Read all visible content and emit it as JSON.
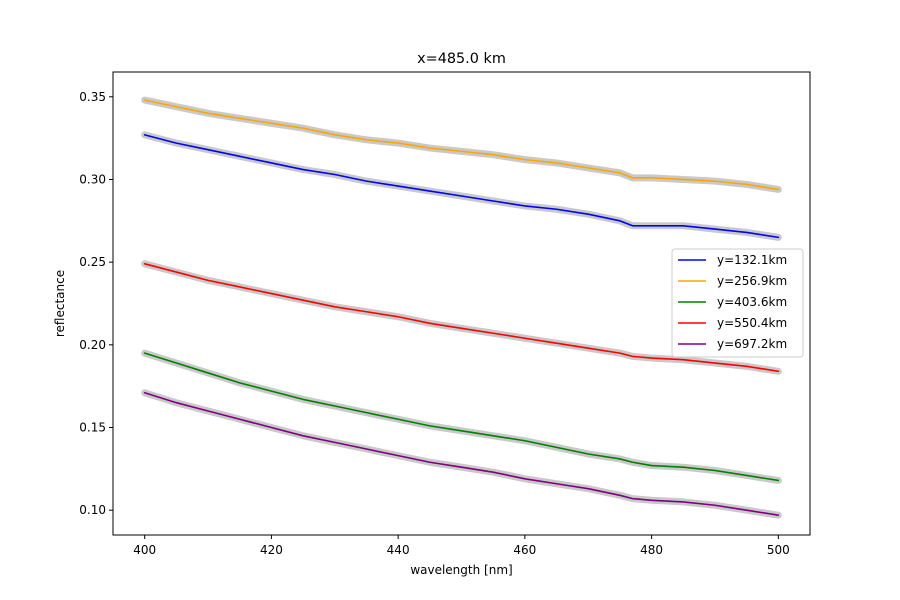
{
  "chart_data": {
    "type": "line",
    "title": "x=485.0 km",
    "xlabel": "wavelength [nm]",
    "ylabel": "reflectance",
    "xlim": [
      395,
      505
    ],
    "ylim": [
      0.085,
      0.365
    ],
    "xticks": [
      400,
      420,
      440,
      460,
      480,
      500
    ],
    "xtick_labels": [
      "400",
      "420",
      "440",
      "460",
      "480",
      "500"
    ],
    "yticks": [
      0.1,
      0.15,
      0.2,
      0.25,
      0.3,
      0.35
    ],
    "ytick_labels": [
      "0.10",
      "0.15",
      "0.20",
      "0.25",
      "0.30",
      "0.35"
    ],
    "grid": false,
    "legend_position": "center-right",
    "uncertainty_band_color": "#c0c0c0",
    "x": [
      400,
      405,
      410,
      415,
      420,
      425,
      430,
      435,
      440,
      445,
      450,
      455,
      460,
      465,
      470,
      475,
      477,
      480,
      485,
      490,
      495,
      500
    ],
    "series": [
      {
        "name": "y=132.1km",
        "color": "#0000ff",
        "values": [
          0.327,
          0.322,
          0.318,
          0.314,
          0.31,
          0.306,
          0.303,
          0.299,
          0.296,
          0.293,
          0.29,
          0.287,
          0.284,
          0.282,
          0.279,
          0.275,
          0.272,
          0.272,
          0.272,
          0.27,
          0.268,
          0.265
        ]
      },
      {
        "name": "y=256.9km",
        "color": "#ffa500",
        "values": [
          0.348,
          0.344,
          0.34,
          0.337,
          0.334,
          0.331,
          0.327,
          0.324,
          0.322,
          0.319,
          0.317,
          0.315,
          0.312,
          0.31,
          0.307,
          0.304,
          0.301,
          0.301,
          0.3,
          0.299,
          0.297,
          0.294
        ]
      },
      {
        "name": "y=403.6km",
        "color": "#008000",
        "values": [
          0.195,
          0.189,
          0.183,
          0.177,
          0.172,
          0.167,
          0.163,
          0.159,
          0.155,
          0.151,
          0.148,
          0.145,
          0.142,
          0.138,
          0.134,
          0.131,
          0.129,
          0.127,
          0.126,
          0.124,
          0.121,
          0.118
        ]
      },
      {
        "name": "y=550.4km",
        "color": "#ff0000",
        "values": [
          0.249,
          0.244,
          0.239,
          0.235,
          0.231,
          0.227,
          0.223,
          0.22,
          0.217,
          0.213,
          0.21,
          0.207,
          0.204,
          0.201,
          0.198,
          0.195,
          0.193,
          0.192,
          0.191,
          0.189,
          0.187,
          0.184
        ]
      },
      {
        "name": "y=697.2km",
        "color": "#800080",
        "values": [
          0.171,
          0.165,
          0.16,
          0.155,
          0.15,
          0.145,
          0.141,
          0.137,
          0.133,
          0.129,
          0.126,
          0.123,
          0.119,
          0.116,
          0.113,
          0.109,
          0.107,
          0.106,
          0.105,
          0.103,
          0.1,
          0.097
        ]
      }
    ]
  }
}
